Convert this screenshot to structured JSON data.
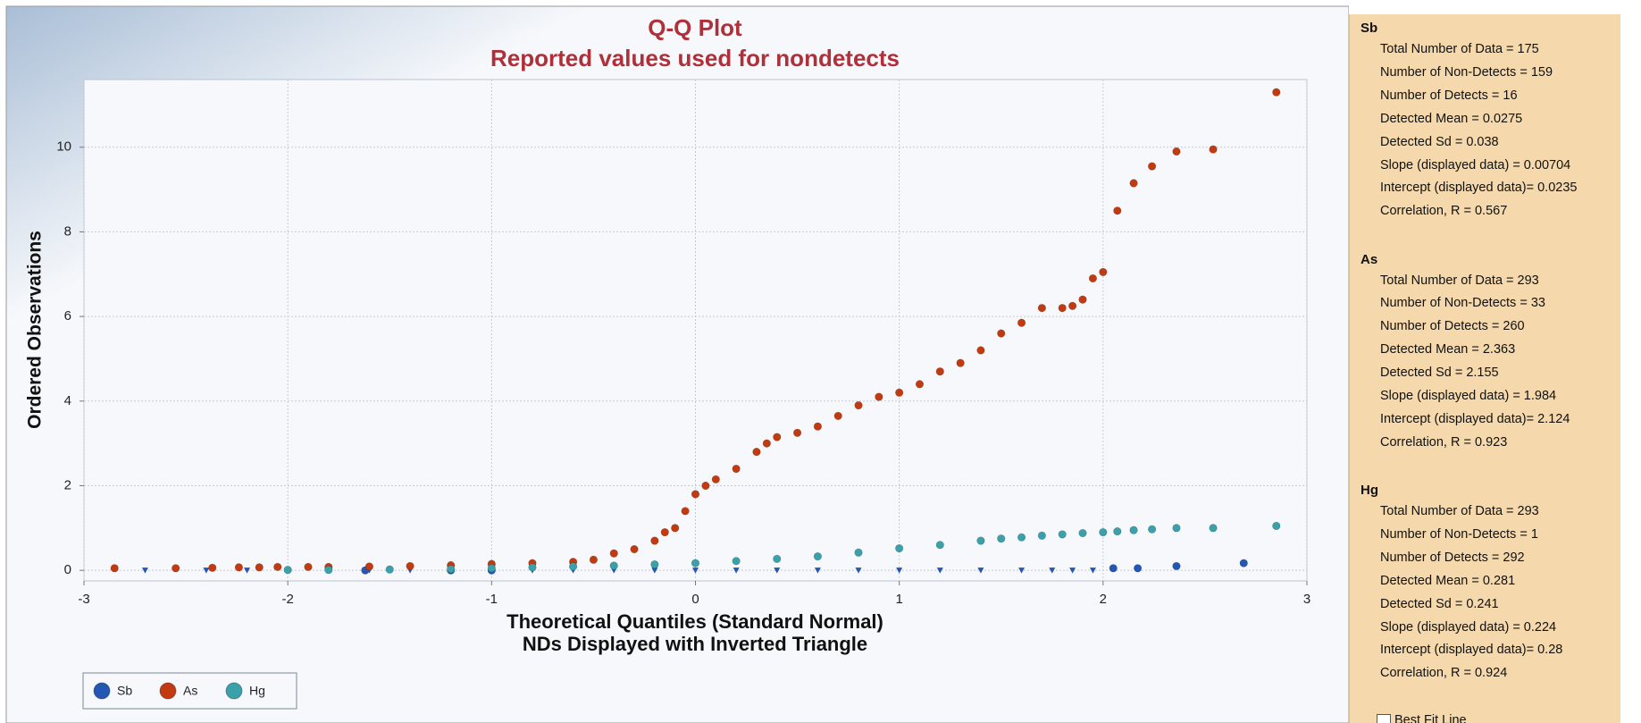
{
  "chart_data": {
    "type": "scatter",
    "title": "Q-Q Plot",
    "subtitle": "Reported values used for nondetects",
    "x_label": "Theoretical Quantiles (Standard Normal)",
    "x_label_note": "NDs Displayed with Inverted Triangle",
    "y_label": "Ordered Observations",
    "xlim": [
      -3,
      3
    ],
    "xticks": [
      -3,
      -2,
      -1,
      0,
      1,
      2,
      3
    ],
    "ylim": [
      -0.25,
      11.6
    ],
    "yticks": [
      0,
      2,
      4,
      6,
      8,
      10
    ],
    "grid": true,
    "legend": "bottom-left",
    "series": [
      {
        "name": "Sb",
        "color": "#2456b4",
        "x": [
          -2.7,
          -2.4,
          -2.2,
          -2.0,
          -1.8,
          -1.62,
          -1.6,
          -1.4,
          -1.2,
          -1.2,
          -1.0,
          -1.0,
          -0.8,
          -0.6,
          -0.4,
          -0.2,
          0,
          0.2,
          0.4,
          0.6,
          0.8,
          1.0,
          1.2,
          1.4,
          1.6,
          1.75,
          1.85,
          1.95,
          2.05,
          2.17,
          2.36,
          2.69
        ],
        "values": [
          0,
          0,
          0,
          0,
          0,
          0,
          0,
          0,
          0,
          0,
          0,
          0,
          0,
          0,
          0,
          0,
          0,
          0,
          0,
          0,
          0,
          0,
          0,
          0,
          0,
          0,
          0,
          0,
          0.05,
          0.05,
          0.1,
          0.17
        ],
        "markers": [
          "triangle-down",
          "triangle-down",
          "triangle-down",
          "triangle-down",
          "triangle-down",
          "circle",
          "triangle-down",
          "triangle-down",
          "triangle-down",
          "circle",
          "triangle-down",
          "circle",
          "triangle-down",
          "triangle-down",
          "triangle-down",
          "triangle-down",
          "triangle-down",
          "triangle-down",
          "triangle-down",
          "triangle-down",
          "triangle-down",
          "triangle-down",
          "triangle-down",
          "triangle-down",
          "triangle-down",
          "triangle-down",
          "triangle-down",
          "triangle-down",
          "circle",
          "circle",
          "circle",
          "circle"
        ]
      },
      {
        "name": "As",
        "color": "#c23a10",
        "x": [
          -2.85,
          -2.55,
          -2.37,
          -2.24,
          -2.14,
          -2.05,
          -1.9,
          -1.8,
          -1.6,
          -1.4,
          -1.2,
          -1.0,
          -0.8,
          -0.6,
          -0.5,
          -0.4,
          -0.3,
          -0.2,
          -0.15,
          -0.1,
          -0.05,
          0,
          0.05,
          0.1,
          0.2,
          0.3,
          0.35,
          0.4,
          0.5,
          0.6,
          0.7,
          0.8,
          0.9,
          1.0,
          1.1,
          1.2,
          1.3,
          1.4,
          1.5,
          1.6,
          1.7,
          1.8,
          1.85,
          1.9,
          1.95,
          2.0,
          2.07,
          2.15,
          2.24,
          2.36,
          2.54,
          2.85
        ],
        "values": [
          0.05,
          0.05,
          0.06,
          0.07,
          0.07,
          0.08,
          0.08,
          0.08,
          0.09,
          0.1,
          0.12,
          0.15,
          0.17,
          0.2,
          0.25,
          0.4,
          0.5,
          0.7,
          0.9,
          1.0,
          1.4,
          1.8,
          2.0,
          2.15,
          2.4,
          2.8,
          3.0,
          3.15,
          3.25,
          3.4,
          3.65,
          3.9,
          4.1,
          4.2,
          4.4,
          4.7,
          4.9,
          5.2,
          5.6,
          5.85,
          6.2,
          6.2,
          6.25,
          6.4,
          6.9,
          7.05,
          8.5,
          9.15,
          9.55,
          9.9,
          9.95,
          11.3
        ]
      },
      {
        "name": "Hg",
        "color": "#3aa0aa",
        "x": [
          -2.0,
          -1.8,
          -1.5,
          -1.2,
          -1.0,
          -0.8,
          -0.6,
          -0.4,
          -0.2,
          0,
          0.2,
          0.4,
          0.6,
          0.8,
          1.0,
          1.2,
          1.4,
          1.5,
          1.6,
          1.7,
          1.8,
          1.9,
          2.0,
          2.07,
          2.15,
          2.24,
          2.36,
          2.54,
          2.85
        ],
        "values": [
          0.01,
          0.01,
          0.02,
          0.03,
          0.05,
          0.07,
          0.09,
          0.11,
          0.14,
          0.17,
          0.22,
          0.27,
          0.33,
          0.42,
          0.52,
          0.6,
          0.7,
          0.75,
          0.78,
          0.82,
          0.85,
          0.88,
          0.9,
          0.92,
          0.95,
          0.97,
          1.0,
          1.0,
          1.05
        ]
      }
    ]
  },
  "panel": {
    "sections": [
      {
        "name": "Sb",
        "lines": [
          "Total Number of Data = 175",
          "Number of Non-Detects = 159",
          "Number of Detects = 16",
          "Detected Mean = 0.0275",
          "Detected Sd = 0.038",
          "Slope (displayed data) = 0.00704",
          "Intercept (displayed data)= 0.0235",
          "Correlation, R = 0.567"
        ]
      },
      {
        "name": "As",
        "lines": [
          "Total Number of Data = 293",
          "Number of Non-Detects = 33",
          "Number of Detects = 260",
          "Detected Mean = 2.363",
          "Detected Sd = 2.155",
          "Slope (displayed data) = 1.984",
          "Intercept (displayed data)= 2.124",
          "Correlation, R = 0.923"
        ]
      },
      {
        "name": "Hg",
        "lines": [
          "Total Number of Data = 293",
          "Number of Non-Detects = 1",
          "Number of Detects = 292",
          "Detected Mean = 0.281",
          "Detected Sd = 0.241",
          "Slope (displayed data) = 0.224",
          "Intercept (displayed data)= 0.28",
          "Correlation, R = 0.924"
        ]
      }
    ],
    "checkbox": "Best Fit Line"
  }
}
